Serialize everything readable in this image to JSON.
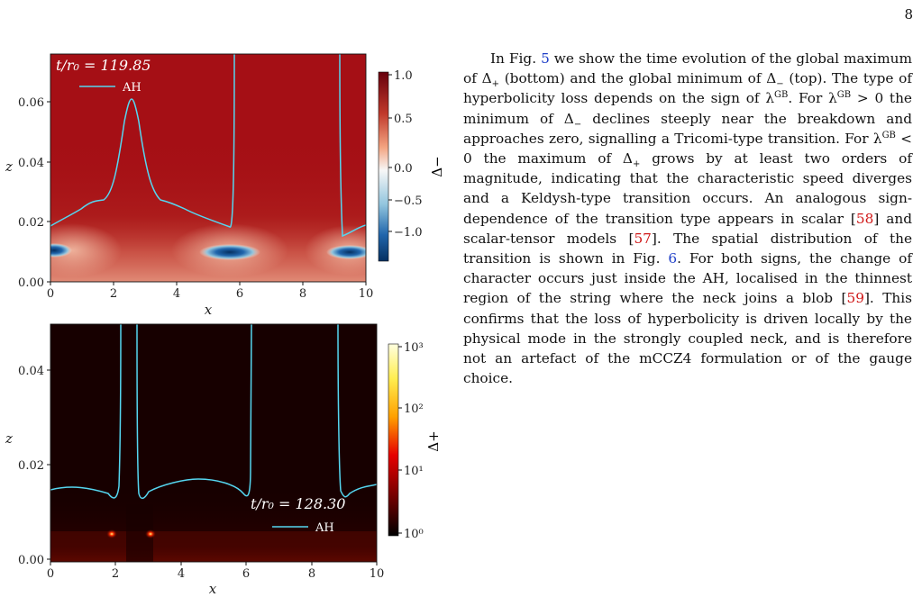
{
  "page_number": "8",
  "paragraph": {
    "t1": "In Fig. ",
    "ref_fig5": "5",
    "t2": " we show the time evolution of the global maximum of Δ",
    "plus": "+",
    "t3": " (bottom) and the global minimum of Δ",
    "minus": "−",
    "t4": " (top). The type of hyperbolicity loss depends on the sign of λ",
    "gb": "GB",
    "t5": ". For λ",
    "t6": " > 0 the minimum of Δ",
    "t7": " declines steeply near the breakdown and approaches zero, signalling a Tricomi-type transition. For λ",
    "t8": " < 0 the maximum of Δ",
    "t9": " grows by at least two orders of magnitude, indicating that the characteristic speed diverges and a Keldysh-type transition occurs. An analogous sign-dependence of the transition type appears in scalar [",
    "ref58": "58",
    "t10": "] and scalar-tensor models [",
    "ref57": "57",
    "t11": "]. The spatial distribution of the transition is shown in Fig. ",
    "ref_fig6": "6",
    "t12": ". For both signs, the change of character occurs just inside the AH, localised in the thinnest region of the string where the neck joins a blob [",
    "ref59": "59",
    "t13": "]. This confirms that the loss of hyperbolicity is driven locally by the physical mode in the strongly coupled neck, and is therefore not an artefact of the mCCZ4 formulation or of the gauge choice."
  },
  "top_panel": {
    "time_label": "t/r₀ = 119.85",
    "legend_label": "AH",
    "xlabel": "x",
    "ylabel": "z",
    "x_ticks": [
      "0",
      "2",
      "4",
      "6",
      "8",
      "10"
    ],
    "y_ticks": [
      "0.00",
      "0.02",
      "0.04",
      "0.06"
    ],
    "colorbar_label": "Δ−",
    "colorbar_ticks": [
      "1.0",
      "0.5",
      "0.0",
      "−0.5",
      "−1.0"
    ]
  },
  "bottom_panel": {
    "time_label": "t/r₀ = 128.30",
    "legend_label": "AH",
    "xlabel": "x",
    "ylabel": "z",
    "x_ticks": [
      "0",
      "2",
      "4",
      "6",
      "8",
      "10"
    ],
    "y_ticks": [
      "0.00",
      "0.02",
      "0.04"
    ],
    "colorbar_label": "Δ+",
    "colorbar_ticks": [
      "10³",
      "10²",
      "10¹",
      "10⁰"
    ]
  },
  "colors": {
    "ah_curve": "#55d6f0",
    "fig_ref": "#1f3fc8",
    "cite_ref": "#d01818",
    "top_bg": "#a50f15",
    "bottom_bg": "#170000"
  }
}
